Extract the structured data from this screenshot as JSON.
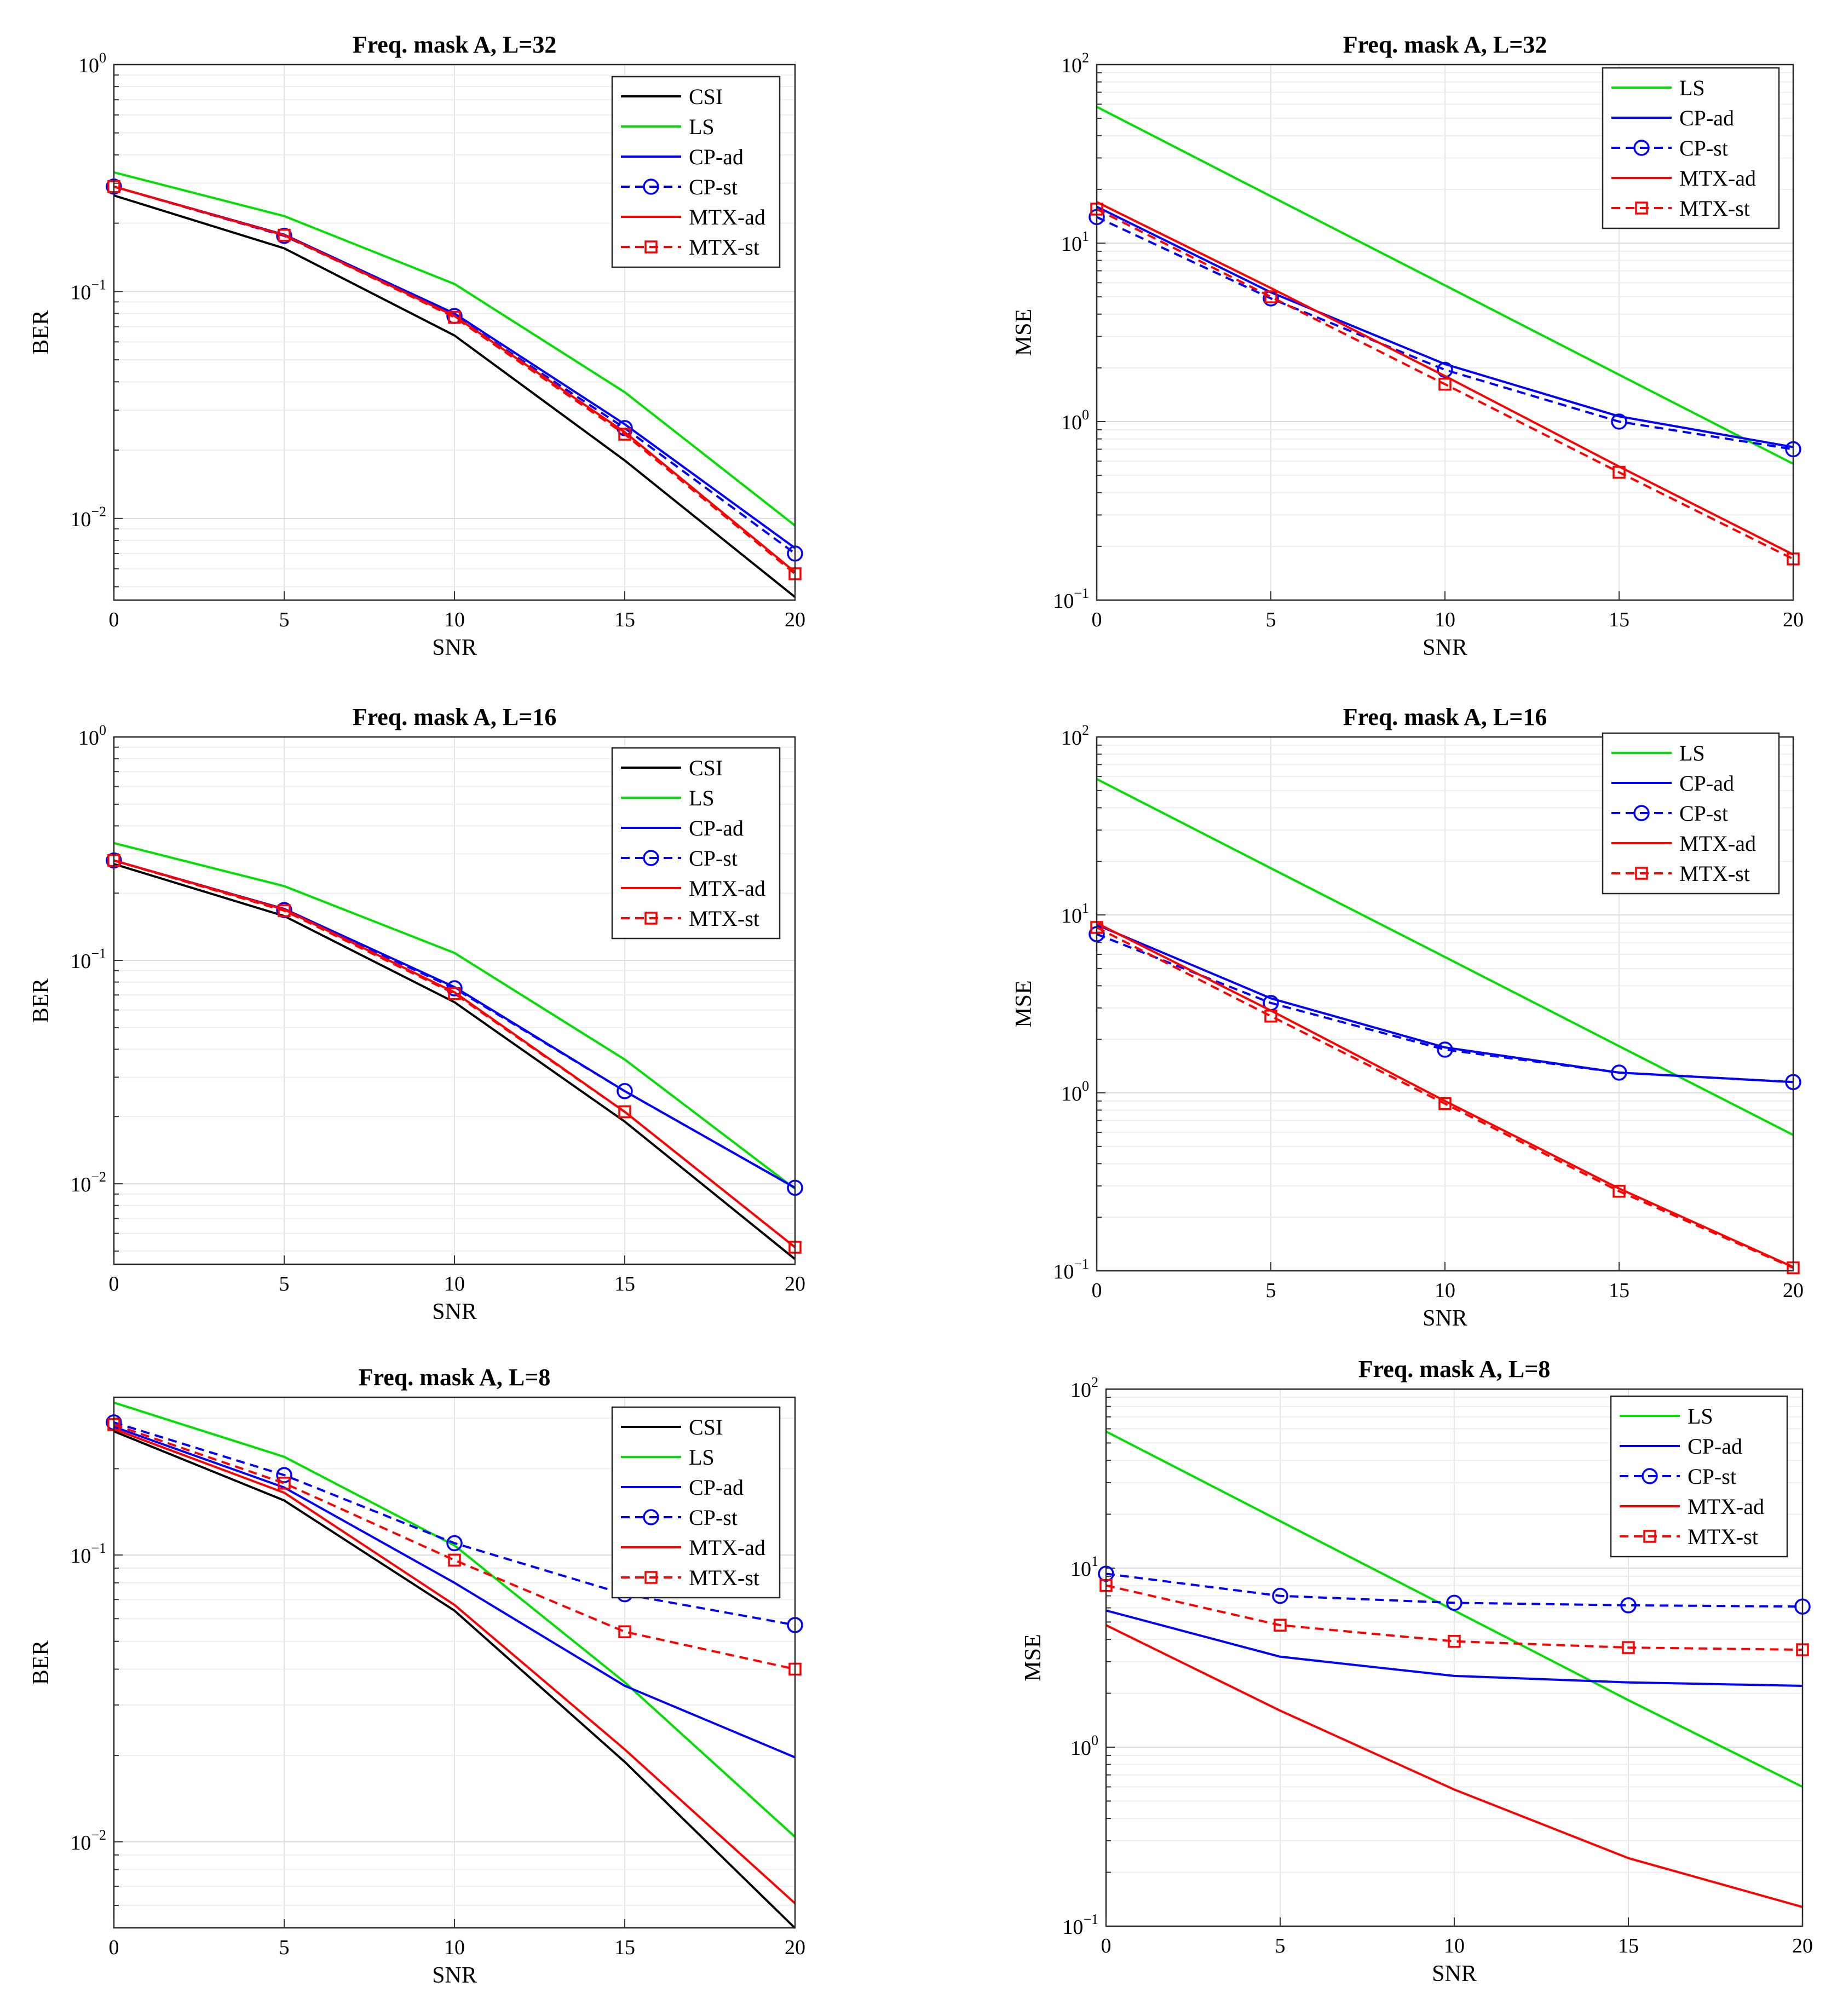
{
  "chart_data": [
    {
      "type": "line",
      "title": "Freq. mask A, L=32",
      "xlabel": "SNR",
      "ylabel": "BER",
      "yscale": "log",
      "xlim": [
        0,
        20
      ],
      "ylim_exp": [
        -2.36,
        0
      ],
      "x_ticks": [
        "0",
        "5",
        "10",
        "15",
        "20"
      ],
      "y_ticks": [
        {
          "base": "10",
          "exp": "0",
          "dec": 0
        },
        {
          "base": "10",
          "exp": "−1",
          "dec": -1
        },
        {
          "base": "10",
          "exp": "−2",
          "dec": -2
        }
      ],
      "legend_position": "top-right",
      "x": [
        0,
        5,
        10,
        15,
        20
      ],
      "series": [
        {
          "name": "CSI",
          "color": "#000000",
          "dashed": false,
          "marker": "none",
          "values": [
            0.265,
            0.155,
            0.064,
            0.018,
            0.0045
          ]
        },
        {
          "name": "LS",
          "color": "#00e000",
          "dashed": false,
          "marker": "none",
          "values": [
            0.335,
            0.215,
            0.108,
            0.036,
            0.0093
          ]
        },
        {
          "name": "CP-ad",
          "color": "#0000ff",
          "dashed": false,
          "marker": "none",
          "values": [
            0.29,
            0.178,
            0.08,
            0.026,
            0.0074
          ]
        },
        {
          "name": "CP-st",
          "color": "#0000ff",
          "dashed": true,
          "marker": "circle",
          "values": [
            0.29,
            0.176,
            0.078,
            0.025,
            0.007
          ]
        },
        {
          "name": "MTX-ad",
          "color": "#ff0000",
          "dashed": false,
          "marker": "none",
          "values": [
            0.29,
            0.177,
            0.078,
            0.024,
            0.0058
          ]
        },
        {
          "name": "MTX-st",
          "color": "#ff0000",
          "dashed": true,
          "marker": "square",
          "values": [
            0.29,
            0.177,
            0.077,
            0.0235,
            0.0057
          ]
        }
      ]
    },
    {
      "type": "line",
      "title": "Freq. mask A, L=32",
      "xlabel": "SNR",
      "ylabel": "MSE",
      "yscale": "log",
      "xlim": [
        0,
        20
      ],
      "ylim_exp": [
        -1,
        2
      ],
      "x_ticks": [
        "0",
        "5",
        "10",
        "15",
        "20"
      ],
      "y_ticks": [
        {
          "base": "10",
          "exp": "2",
          "dec": 2
        },
        {
          "base": "10",
          "exp": "1",
          "dec": 1
        },
        {
          "base": "10",
          "exp": "0",
          "dec": 0
        },
        {
          "base": "10",
          "exp": "−1",
          "dec": -1
        }
      ],
      "legend_position": "top-right",
      "x": [
        0,
        5,
        10,
        15,
        20
      ],
      "series": [
        {
          "name": "LS",
          "color": "#00e000",
          "dashed": false,
          "marker": "none",
          "values": [
            58,
            18.3,
            5.8,
            1.83,
            0.58
          ]
        },
        {
          "name": "CP-ad",
          "color": "#0000ff",
          "dashed": false,
          "marker": "none",
          "values": [
            16,
            5.3,
            2.1,
            1.07,
            0.72
          ]
        },
        {
          "name": "CP-st",
          "color": "#0000ff",
          "dashed": true,
          "marker": "circle",
          "values": [
            14,
            4.9,
            1.95,
            1.0,
            0.7
          ]
        },
        {
          "name": "MTX-ad",
          "color": "#ff0000",
          "dashed": false,
          "marker": "none",
          "values": [
            17,
            5.6,
            1.8,
            0.56,
            0.18
          ]
        },
        {
          "name": "MTX-st",
          "color": "#ff0000",
          "dashed": true,
          "marker": "square",
          "values": [
            15.5,
            5.0,
            1.62,
            0.52,
            0.17
          ]
        }
      ]
    },
    {
      "type": "line",
      "title": "Freq. mask A, L=16",
      "xlabel": "SNR",
      "ylabel": "BER",
      "yscale": "log",
      "xlim": [
        0,
        20
      ],
      "ylim_exp": [
        -2.36,
        0
      ],
      "x_ticks": [
        "0",
        "5",
        "10",
        "15",
        "20"
      ],
      "y_ticks": [
        {
          "base": "10",
          "exp": "0",
          "dec": 0
        },
        {
          "base": "10",
          "exp": "−1",
          "dec": -1
        },
        {
          "base": "10",
          "exp": "−2",
          "dec": -2
        }
      ],
      "legend_position": "top-right",
      "x": [
        0,
        5,
        10,
        15,
        20
      ],
      "series": [
        {
          "name": "CSI",
          "color": "#000000",
          "dashed": false,
          "marker": "none",
          "values": [
            0.27,
            0.158,
            0.065,
            0.019,
            0.0046
          ]
        },
        {
          "name": "LS",
          "color": "#00e000",
          "dashed": false,
          "marker": "none",
          "values": [
            0.335,
            0.215,
            0.108,
            0.036,
            0.0095
          ]
        },
        {
          "name": "CP-ad",
          "color": "#0000ff",
          "dashed": false,
          "marker": "none",
          "values": [
            0.28,
            0.17,
            0.076,
            0.026,
            0.0096
          ]
        },
        {
          "name": "CP-st",
          "color": "#0000ff",
          "dashed": true,
          "marker": "circle",
          "values": [
            0.28,
            0.168,
            0.075,
            0.026,
            0.0096
          ]
        },
        {
          "name": "MTX-ad",
          "color": "#ff0000",
          "dashed": false,
          "marker": "none",
          "values": [
            0.28,
            0.169,
            0.072,
            0.021,
            0.0052
          ]
        },
        {
          "name": "MTX-st",
          "color": "#ff0000",
          "dashed": true,
          "marker": "square",
          "values": [
            0.28,
            0.167,
            0.071,
            0.021,
            0.0052
          ]
        }
      ]
    },
    {
      "type": "line",
      "title": "Freq. mask A, L=16",
      "xlabel": "SNR",
      "ylabel": "MSE",
      "yscale": "log",
      "xlim": [
        0,
        20
      ],
      "ylim_exp": [
        -1,
        2
      ],
      "x_ticks": [
        "0",
        "5",
        "10",
        "15",
        "20"
      ],
      "y_ticks": [
        {
          "base": "10",
          "exp": "2",
          "dec": 2
        },
        {
          "base": "10",
          "exp": "1",
          "dec": 1
        },
        {
          "base": "10",
          "exp": "0",
          "dec": 0
        },
        {
          "base": "10",
          "exp": "−1",
          "dec": -1
        }
      ],
      "legend_position": "top-right",
      "x": [
        0,
        5,
        10,
        15,
        20
      ],
      "series": [
        {
          "name": "LS",
          "color": "#00e000",
          "dashed": false,
          "marker": "none",
          "values": [
            58,
            18.3,
            5.8,
            1.83,
            0.58
          ]
        },
        {
          "name": "CP-ad",
          "color": "#0000ff",
          "dashed": false,
          "marker": "none",
          "values": [
            8.8,
            3.4,
            1.8,
            1.3,
            1.15
          ]
        },
        {
          "name": "CP-st",
          "color": "#0000ff",
          "dashed": true,
          "marker": "circle",
          "values": [
            7.8,
            3.2,
            1.75,
            1.3,
            1.15
          ]
        },
        {
          "name": "MTX-ad",
          "color": "#ff0000",
          "dashed": false,
          "marker": "none",
          "values": [
            9.0,
            2.9,
            0.9,
            0.29,
            0.105
          ]
        },
        {
          "name": "MTX-st",
          "color": "#ff0000",
          "dashed": true,
          "marker": "square",
          "values": [
            8.5,
            2.7,
            0.87,
            0.28,
            0.104
          ]
        }
      ]
    },
    {
      "type": "line",
      "title": "Freq. mask A, L=8",
      "xlabel": "SNR",
      "ylabel": "BER",
      "yscale": "log",
      "xlim": [
        0,
        20
      ],
      "ylim_exp": [
        -2.3,
        -0.45
      ],
      "x_ticks": [
        "0",
        "5",
        "10",
        "15",
        "20"
      ],
      "y_ticks": [
        {
          "base": "10",
          "exp": "−1",
          "dec": -1
        },
        {
          "base": "10",
          "exp": "−2",
          "dec": -2
        }
      ],
      "legend_position": "top-right",
      "x": [
        0,
        5,
        10,
        15,
        20
      ],
      "series": [
        {
          "name": "CSI",
          "color": "#000000",
          "dashed": false,
          "marker": "none",
          "values": [
            0.27,
            0.155,
            0.064,
            0.019,
            0.005
          ]
        },
        {
          "name": "LS",
          "color": "#00e000",
          "dashed": false,
          "marker": "none",
          "values": [
            0.34,
            0.22,
            0.108,
            0.036,
            0.0104
          ]
        },
        {
          "name": "CP-ad",
          "color": "#0000ff",
          "dashed": false,
          "marker": "none",
          "values": [
            0.28,
            0.172,
            0.08,
            0.035,
            0.0197
          ]
        },
        {
          "name": "CP-st",
          "color": "#0000ff",
          "dashed": true,
          "marker": "circle",
          "values": [
            0.29,
            0.19,
            0.11,
            0.073,
            0.057
          ]
        },
        {
          "name": "MTX-ad",
          "color": "#ff0000",
          "dashed": false,
          "marker": "none",
          "values": [
            0.275,
            0.165,
            0.067,
            0.021,
            0.0061
          ]
        },
        {
          "name": "MTX-st",
          "color": "#ff0000",
          "dashed": true,
          "marker": "square",
          "values": [
            0.285,
            0.178,
            0.096,
            0.054,
            0.04
          ]
        }
      ]
    },
    {
      "type": "line",
      "title": "Freq. mask A, L=8",
      "xlabel": "SNR",
      "ylabel": "MSE",
      "yscale": "log",
      "xlim": [
        0,
        20
      ],
      "ylim_exp": [
        -1,
        2
      ],
      "x_ticks": [
        "0",
        "5",
        "10",
        "15",
        "20"
      ],
      "y_ticks": [
        {
          "base": "10",
          "exp": "2",
          "dec": 2
        },
        {
          "base": "10",
          "exp": "1",
          "dec": 1
        },
        {
          "base": "10",
          "exp": "0",
          "dec": 0
        },
        {
          "base": "10",
          "exp": "−1",
          "dec": -1
        }
      ],
      "legend_position": "top-right",
      "x": [
        0,
        5,
        10,
        15,
        20
      ],
      "series": [
        {
          "name": "LS",
          "color": "#00e000",
          "dashed": false,
          "marker": "none",
          "values": [
            58,
            18.3,
            5.8,
            1.83,
            0.6
          ]
        },
        {
          "name": "CP-ad",
          "color": "#0000ff",
          "dashed": false,
          "marker": "none",
          "values": [
            5.8,
            3.2,
            2.5,
            2.3,
            2.2
          ]
        },
        {
          "name": "CP-st",
          "color": "#0000ff",
          "dashed": true,
          "marker": "circle",
          "values": [
            9.3,
            7.0,
            6.4,
            6.2,
            6.1
          ]
        },
        {
          "name": "MTX-ad",
          "color": "#ff0000",
          "dashed": false,
          "marker": "none",
          "values": [
            4.8,
            1.6,
            0.58,
            0.24,
            0.128
          ]
        },
        {
          "name": "MTX-st",
          "color": "#ff0000",
          "dashed": true,
          "marker": "square",
          "values": [
            8.0,
            4.8,
            3.9,
            3.6,
            3.5
          ]
        }
      ]
    }
  ]
}
